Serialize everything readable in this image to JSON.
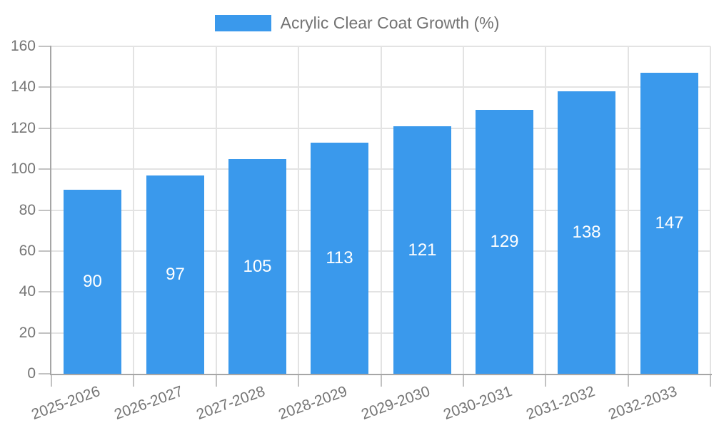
{
  "chart_data": {
    "type": "bar",
    "title": "Acrylic Clear Coat Growth (%)",
    "legend": {
      "label": "Acrylic Clear Coat Growth (%)",
      "position": "top"
    },
    "categories": [
      "2025-2026",
      "2026-2027",
      "2027-2028",
      "2028-2029",
      "2029-2030",
      "2030-2031",
      "2031-2032",
      "2032-2033"
    ],
    "series": [
      {
        "name": "Acrylic Clear Coat Growth (%)",
        "values": [
          90,
          97,
          105,
          113,
          121,
          129,
          138,
          147
        ]
      }
    ],
    "value_labels": [
      "90",
      "97",
      "105",
      "113",
      "121",
      "129",
      "138",
      "147"
    ],
    "yticks": [
      0,
      20,
      40,
      60,
      80,
      100,
      120,
      140,
      160
    ],
    "ylim": [
      0,
      160
    ],
    "xlabel": "",
    "ylabel": "",
    "grid": "both",
    "x_label_rotation_deg": -20,
    "colors": {
      "bar": "#3a99ec",
      "value_label": "#ffffff",
      "gridline": "#e3e3e3",
      "axis": "#a6a6a6",
      "tick_mark": "#c2c2c2",
      "tick_text": "#757575",
      "legend_text": "#737373",
      "background": "#ffffff"
    }
  }
}
